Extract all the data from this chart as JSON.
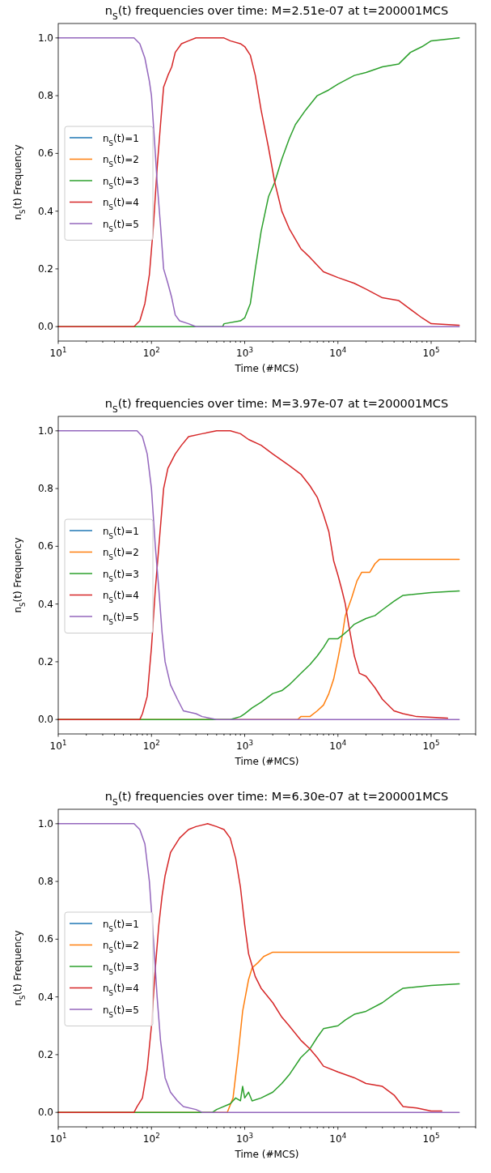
{
  "chart_data": [
    {
      "type": "line",
      "title": "n$_{S}$(t) frequencies over time: M=2.51e-07 at t=200001MCS",
      "xlabel": "Time (#MCS)",
      "ylabel": "n$_{S}$(t) Frequency",
      "log": "x",
      "grid": false,
      "legend": "left",
      "xlim": [
        10,
        300000
      ],
      "ylim": [
        -0.05,
        1.05
      ],
      "xticks": [
        {
          "value": 10,
          "label": "10$^{1}$"
        },
        {
          "value": 100,
          "label": "10$^{2}$"
        },
        {
          "value": 1000,
          "label": "10$^{3}$"
        },
        {
          "value": 10000,
          "label": "10$^{4}$"
        },
        {
          "value": 100000,
          "label": "10$^{5}$"
        },
        {
          "value": 20,
          "label": null
        },
        {
          "value": 30,
          "label": null
        },
        {
          "value": 40,
          "label": null
        },
        {
          "value": 50,
          "label": null
        },
        {
          "value": 60,
          "label": null
        },
        {
          "value": 70,
          "label": null
        },
        {
          "value": 80,
          "label": null
        },
        {
          "value": 90,
          "label": null
        },
        {
          "value": 200,
          "label": null
        },
        {
          "value": 300,
          "label": null
        },
        {
          "value": 400,
          "label": null
        },
        {
          "value": 500,
          "label": null
        },
        {
          "value": 600,
          "label": null
        },
        {
          "value": 700,
          "label": null
        },
        {
          "value": 800,
          "label": null
        },
        {
          "value": 900,
          "label": null
        },
        {
          "value": 2000,
          "label": null
        },
        {
          "value": 3000,
          "label": null
        },
        {
          "value": 4000,
          "label": null
        },
        {
          "value": 5000,
          "label": null
        },
        {
          "value": 6000,
          "label": null
        },
        {
          "value": 7000,
          "label": null
        },
        {
          "value": 8000,
          "label": null
        },
        {
          "value": 9000,
          "label": null
        },
        {
          "value": 20000,
          "label": null
        },
        {
          "value": 30000,
          "label": null
        },
        {
          "value": 40000,
          "label": null
        },
        {
          "value": 50000,
          "label": null
        },
        {
          "value": 60000,
          "label": null
        },
        {
          "value": 70000,
          "label": null
        },
        {
          "value": 80000,
          "label": null
        },
        {
          "value": 90000,
          "label": null
        },
        {
          "value": 200000,
          "label": null
        },
        {
          "value": 300000,
          "label": null
        }
      ],
      "yticks": [
        {
          "value": 0,
          "label": "0.0"
        },
        {
          "value": 0.2,
          "label": "0.2"
        },
        {
          "value": 0.4,
          "label": "0.4"
        },
        {
          "value": 0.6,
          "label": "0.6"
        },
        {
          "value": 0.8,
          "label": "0.8"
        },
        {
          "value": 1,
          "label": "1.0"
        }
      ],
      "series": [
        {
          "name": "n$_{S}$(t)=1",
          "color": "#1f77b4"
        },
        {
          "name": "n$_{S}$(t)=2",
          "color": "#ff7f0e"
        },
        {
          "name": "n$_{S}$(t)=3",
          "color": "#2ca02c",
          "x": [
            10,
            580,
            600,
            900,
            1000,
            1150,
            1300,
            1500,
            1800,
            2100,
            2500,
            3000,
            3500,
            4500,
            6000,
            8000,
            10000,
            15000,
            20000,
            30000,
            45000,
            60000,
            80000,
            100000,
            200001
          ],
          "values": [
            0,
            0,
            0.01,
            0.02,
            0.03,
            0.08,
            0.2,
            0.33,
            0.45,
            0.5,
            0.58,
            0.65,
            0.7,
            0.75,
            0.8,
            0.82,
            0.84,
            0.87,
            0.88,
            0.9,
            0.91,
            0.95,
            0.97,
            0.99,
            1.0
          ]
        },
        {
          "name": "n$_{S}$(t)=4",
          "color": "#d62728",
          "x": [
            10,
            65,
            75,
            85,
            95,
            105,
            115,
            125,
            135,
            150,
            165,
            180,
            210,
            250,
            300,
            600,
            700,
            900,
            1000,
            1150,
            1300,
            1500,
            1800,
            2100,
            2500,
            3000,
            4000,
            5000,
            7000,
            10000,
            15000,
            20000,
            30000,
            45000,
            60000,
            80000,
            100000,
            200001
          ],
          "values": [
            0,
            0,
            0.02,
            0.08,
            0.18,
            0.35,
            0.55,
            0.7,
            0.83,
            0.87,
            0.9,
            0.95,
            0.98,
            0.99,
            1,
            1,
            0.99,
            0.98,
            0.97,
            0.94,
            0.87,
            0.75,
            0.62,
            0.5,
            0.4,
            0.34,
            0.27,
            0.24,
            0.19,
            0.17,
            0.15,
            0.13,
            0.1,
            0.09,
            0.06,
            0.03,
            0.01,
            0.005
          ]
        },
        {
          "name": "n$_{S}$(t)=5",
          "color": "#9467bd",
          "x": [
            10,
            65,
            75,
            85,
            95,
            100,
            110,
            115,
            125,
            135,
            150,
            165,
            180,
            200,
            250,
            300,
            200001
          ],
          "values": [
            1,
            1,
            0.98,
            0.93,
            0.85,
            0.8,
            0.6,
            0.5,
            0.35,
            0.2,
            0.15,
            0.1,
            0.04,
            0.02,
            0.01,
            0,
            0
          ]
        }
      ]
    },
    {
      "type": "line",
      "title": "n$_{S}$(t) frequencies over time: M=3.97e-07 at t=200001MCS",
      "xlabel": "Time (#MCS)",
      "ylabel": "n$_{S}$(t) Frequency",
      "log": "x",
      "grid": false,
      "legend": "left",
      "xlim": [
        10,
        300000
      ],
      "ylim": [
        -0.05,
        1.05
      ],
      "xticks": [
        {
          "value": 10,
          "label": "10$^{1}$"
        },
        {
          "value": 100,
          "label": "10$^{2}$"
        },
        {
          "value": 1000,
          "label": "10$^{3}$"
        },
        {
          "value": 10000,
          "label": "10$^{4}$"
        },
        {
          "value": 100000,
          "label": "10$^{5}$"
        },
        {
          "value": 20,
          "label": null
        },
        {
          "value": 30,
          "label": null
        },
        {
          "value": 40,
          "label": null
        },
        {
          "value": 50,
          "label": null
        },
        {
          "value": 60,
          "label": null
        },
        {
          "value": 70,
          "label": null
        },
        {
          "value": 80,
          "label": null
        },
        {
          "value": 90,
          "label": null
        },
        {
          "value": 200,
          "label": null
        },
        {
          "value": 300,
          "label": null
        },
        {
          "value": 400,
          "label": null
        },
        {
          "value": 500,
          "label": null
        },
        {
          "value": 600,
          "label": null
        },
        {
          "value": 700,
          "label": null
        },
        {
          "value": 800,
          "label": null
        },
        {
          "value": 900,
          "label": null
        },
        {
          "value": 2000,
          "label": null
        },
        {
          "value": 3000,
          "label": null
        },
        {
          "value": 4000,
          "label": null
        },
        {
          "value": 5000,
          "label": null
        },
        {
          "value": 6000,
          "label": null
        },
        {
          "value": 7000,
          "label": null
        },
        {
          "value": 8000,
          "label": null
        },
        {
          "value": 9000,
          "label": null
        },
        {
          "value": 20000,
          "label": null
        },
        {
          "value": 30000,
          "label": null
        },
        {
          "value": 40000,
          "label": null
        },
        {
          "value": 50000,
          "label": null
        },
        {
          "value": 60000,
          "label": null
        },
        {
          "value": 70000,
          "label": null
        },
        {
          "value": 80000,
          "label": null
        },
        {
          "value": 90000,
          "label": null
        },
        {
          "value": 200000,
          "label": null
        },
        {
          "value": 300000,
          "label": null
        }
      ],
      "yticks": [
        {
          "value": 0,
          "label": "0.0"
        },
        {
          "value": 0.2,
          "label": "0.2"
        },
        {
          "value": 0.4,
          "label": "0.4"
        },
        {
          "value": 0.6,
          "label": "0.6"
        },
        {
          "value": 0.8,
          "label": "0.8"
        },
        {
          "value": 1,
          "label": "1.0"
        }
      ],
      "series": [
        {
          "name": "n$_{S}$(t)=1",
          "color": "#1f77b4"
        },
        {
          "name": "n$_{S}$(t)=2",
          "color": "#ff7f0e",
          "x": [
            10,
            3700,
            4000,
            5000,
            6000,
            7000,
            8000,
            9000,
            10000,
            11000,
            12000,
            14000,
            16000,
            18000,
            22000,
            25000,
            28000,
            200001
          ],
          "values": [
            0,
            0,
            0.01,
            0.01,
            0.03,
            0.05,
            0.09,
            0.14,
            0.21,
            0.28,
            0.36,
            0.42,
            0.48,
            0.51,
            0.51,
            0.54,
            0.555,
            0.555
          ]
        },
        {
          "name": "n$_{S}$(t)=3",
          "color": "#2ca02c",
          "x": [
            10,
            700,
            900,
            1000,
            1200,
            1500,
            2000,
            2500,
            3000,
            4000,
            5000,
            6000,
            7000,
            8000,
            10000,
            11000,
            13000,
            15000,
            20000,
            25000,
            30000,
            40000,
            50000,
            100000,
            200001
          ],
          "values": [
            0,
            0,
            0.01,
            0.02,
            0.04,
            0.06,
            0.09,
            0.1,
            0.12,
            0.16,
            0.19,
            0.22,
            0.25,
            0.28,
            0.28,
            0.29,
            0.31,
            0.33,
            0.35,
            0.36,
            0.38,
            0.41,
            0.43,
            0.44,
            0.445
          ]
        },
        {
          "name": "n$_{S}$(t)=4",
          "color": "#d62728",
          "x": [
            10,
            75,
            80,
            90,
            100,
            110,
            120,
            135,
            150,
            180,
            210,
            250,
            350,
            500,
            700,
            900,
            1100,
            1500,
            2000,
            3000,
            4000,
            5000,
            6000,
            7000,
            8000,
            9000,
            10000,
            11000,
            12000,
            13000,
            15000,
            17000,
            20000,
            25000,
            30000,
            40000,
            50000,
            70000,
            150000
          ],
          "values": [
            0,
            0,
            0.02,
            0.08,
            0.25,
            0.45,
            0.6,
            0.8,
            0.87,
            0.92,
            0.95,
            0.98,
            0.99,
            1,
            1,
            0.99,
            0.97,
            0.95,
            0.92,
            0.88,
            0.85,
            0.81,
            0.77,
            0.71,
            0.65,
            0.55,
            0.5,
            0.45,
            0.4,
            0.33,
            0.22,
            0.16,
            0.15,
            0.11,
            0.07,
            0.03,
            0.02,
            0.01,
            0.005
          ]
        },
        {
          "name": "n$_{S}$(t)=5",
          "color": "#9467bd",
          "x": [
            10,
            70,
            80,
            90,
            100,
            110,
            120,
            130,
            140,
            160,
            190,
            220,
            300,
            350,
            500,
            200001
          ],
          "values": [
            1,
            1,
            0.98,
            0.92,
            0.8,
            0.6,
            0.45,
            0.3,
            0.2,
            0.12,
            0.07,
            0.03,
            0.02,
            0.01,
            0,
            0
          ]
        }
      ]
    },
    {
      "type": "line",
      "title": "n$_{S}$(t) frequencies over time: M=6.30e-07 at t=200001MCS",
      "xlabel": "Time (#MCS)",
      "ylabel": "n$_{S}$(t) Frequency",
      "log": "x",
      "grid": false,
      "legend": "left",
      "xlim": [
        10,
        300000
      ],
      "ylim": [
        -0.05,
        1.05
      ],
      "xticks": [
        {
          "value": 10,
          "label": "10$^{1}$"
        },
        {
          "value": 100,
          "label": "10$^{2}$"
        },
        {
          "value": 1000,
          "label": "10$^{3}$"
        },
        {
          "value": 10000,
          "label": "10$^{4}$"
        },
        {
          "value": 100000,
          "label": "10$^{5}$"
        },
        {
          "value": 20,
          "label": null
        },
        {
          "value": 30,
          "label": null
        },
        {
          "value": 40,
          "label": null
        },
        {
          "value": 50,
          "label": null
        },
        {
          "value": 60,
          "label": null
        },
        {
          "value": 70,
          "label": null
        },
        {
          "value": 80,
          "label": null
        },
        {
          "value": 90,
          "label": null
        },
        {
          "value": 200,
          "label": null
        },
        {
          "value": 300,
          "label": null
        },
        {
          "value": 400,
          "label": null
        },
        {
          "value": 500,
          "label": null
        },
        {
          "value": 600,
          "label": null
        },
        {
          "value": 700,
          "label": null
        },
        {
          "value": 800,
          "label": null
        },
        {
          "value": 900,
          "label": null
        },
        {
          "value": 2000,
          "label": null
        },
        {
          "value": 3000,
          "label": null
        },
        {
          "value": 4000,
          "label": null
        },
        {
          "value": 5000,
          "label": null
        },
        {
          "value": 6000,
          "label": null
        },
        {
          "value": 7000,
          "label": null
        },
        {
          "value": 8000,
          "label": null
        },
        {
          "value": 9000,
          "label": null
        },
        {
          "value": 20000,
          "label": null
        },
        {
          "value": 30000,
          "label": null
        },
        {
          "value": 40000,
          "label": null
        },
        {
          "value": 50000,
          "label": null
        },
        {
          "value": 60000,
          "label": null
        },
        {
          "value": 70000,
          "label": null
        },
        {
          "value": 80000,
          "label": null
        },
        {
          "value": 90000,
          "label": null
        },
        {
          "value": 200000,
          "label": null
        },
        {
          "value": 300000,
          "label": null
        }
      ],
      "yticks": [
        {
          "value": 0,
          "label": "0.0"
        },
        {
          "value": 0.2,
          "label": "0.2"
        },
        {
          "value": 0.4,
          "label": "0.4"
        },
        {
          "value": 0.6,
          "label": "0.6"
        },
        {
          "value": 0.8,
          "label": "0.8"
        },
        {
          "value": 1,
          "label": "1.0"
        }
      ],
      "series": [
        {
          "name": "n$_{S}$(t)=1",
          "color": "#1f77b4"
        },
        {
          "name": "n$_{S}$(t)=2",
          "color": "#ff7f0e",
          "x": [
            10,
            650,
            750,
            850,
            950,
            1100,
            1200,
            1400,
            1600,
            2000,
            200001
          ],
          "values": [
            0,
            0,
            0.05,
            0.2,
            0.35,
            0.46,
            0.5,
            0.52,
            0.54,
            0.555,
            0.555
          ]
        },
        {
          "name": "n$_{S}$(t)=3",
          "color": "#2ca02c",
          "x": [
            10,
            450,
            500,
            700,
            800,
            900,
            950,
            1000,
            1100,
            1200,
            1500,
            2000,
            2500,
            3000,
            4000,
            5000,
            6000,
            7000,
            10000,
            12000,
            15000,
            20000,
            30000,
            40000,
            50000,
            100000,
            200001
          ],
          "values": [
            0,
            0,
            0.01,
            0.03,
            0.05,
            0.04,
            0.09,
            0.05,
            0.07,
            0.04,
            0.05,
            0.07,
            0.1,
            0.13,
            0.19,
            0.22,
            0.26,
            0.29,
            0.3,
            0.32,
            0.34,
            0.35,
            0.38,
            0.41,
            0.43,
            0.44,
            0.445
          ]
        },
        {
          "name": "n$_{S}$(t)=4",
          "color": "#d62728",
          "x": [
            10,
            65,
            70,
            80,
            90,
            100,
            110,
            120,
            130,
            140,
            160,
            200,
            250,
            300,
            400,
            500,
            600,
            700,
            800,
            900,
            1000,
            1100,
            1300,
            1500,
            2000,
            2500,
            3000,
            4000,
            5000,
            6000,
            7000,
            10000,
            15000,
            20000,
            30000,
            40000,
            50000,
            70000,
            100000,
            130000
          ],
          "values": [
            0,
            0,
            0.02,
            0.05,
            0.15,
            0.3,
            0.5,
            0.65,
            0.75,
            0.82,
            0.9,
            0.95,
            0.98,
            0.99,
            1,
            0.99,
            0.98,
            0.95,
            0.88,
            0.78,
            0.65,
            0.55,
            0.47,
            0.43,
            0.38,
            0.33,
            0.3,
            0.25,
            0.22,
            0.19,
            0.16,
            0.14,
            0.12,
            0.1,
            0.09,
            0.06,
            0.02,
            0.015,
            0.005,
            0.005
          ]
        },
        {
          "name": "n$_{S}$(t)=5",
          "color": "#9467bd",
          "x": [
            10,
            65,
            75,
            85,
            95,
            105,
            115,
            125,
            140,
            160,
            190,
            220,
            300,
            350,
            200001
          ],
          "values": [
            1,
            1,
            0.98,
            0.93,
            0.8,
            0.6,
            0.4,
            0.25,
            0.12,
            0.07,
            0.04,
            0.02,
            0.01,
            0,
            0
          ]
        }
      ]
    }
  ]
}
